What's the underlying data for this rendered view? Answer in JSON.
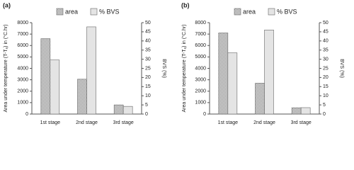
{
  "chart_data": [
    {
      "type": "bar",
      "title": "(a)",
      "ylabel": "Area under temperature (T-Tₐ) in (°C.hr)",
      "y2label": "BVS (%)",
      "categories": [
        "1st stage",
        "2nd stage",
        "3rd stage"
      ],
      "series": [
        {
          "name": "area",
          "color": "#7a7a7a",
          "values": [
            6600,
            3050,
            800
          ]
        },
        {
          "name": "% BVS",
          "color": "#e4e4e4",
          "axis": "y2",
          "values": [
            29.6,
            47.7,
            4.2
          ]
        }
      ],
      "ylim": [
        0,
        8000
      ],
      "yticks": [
        0,
        1000,
        2000,
        3000,
        4000,
        5000,
        6000,
        7000,
        8000
      ],
      "y2lim": [
        0,
        50
      ],
      "y2ticks": [
        0,
        5,
        10,
        15,
        20,
        25,
        30,
        35,
        40,
        45,
        50
      ]
    },
    {
      "type": "bar",
      "title": "(b)",
      "ylabel": "Area under temperature (T-Tₐ) in (°C.hr)",
      "y2label": "BVS (%)",
      "categories": [
        "1st stage",
        "2nd stage",
        "3rd stage"
      ],
      "series": [
        {
          "name": "area",
          "color": "#7a7a7a",
          "values": [
            7100,
            2700,
            550
          ]
        },
        {
          "name": "% BVS",
          "color": "#e4e4e4",
          "axis": "y2",
          "values": [
            33.5,
            46,
            3.5
          ]
        }
      ],
      "ylim": [
        0,
        8000
      ],
      "yticks": [
        0,
        1000,
        2000,
        3000,
        4000,
        5000,
        6000,
        7000,
        8000
      ],
      "y2lim": [
        0,
        50
      ],
      "y2ticks": [
        0,
        5,
        10,
        15,
        20,
        25,
        30,
        35,
        40,
        45,
        50
      ]
    }
  ]
}
